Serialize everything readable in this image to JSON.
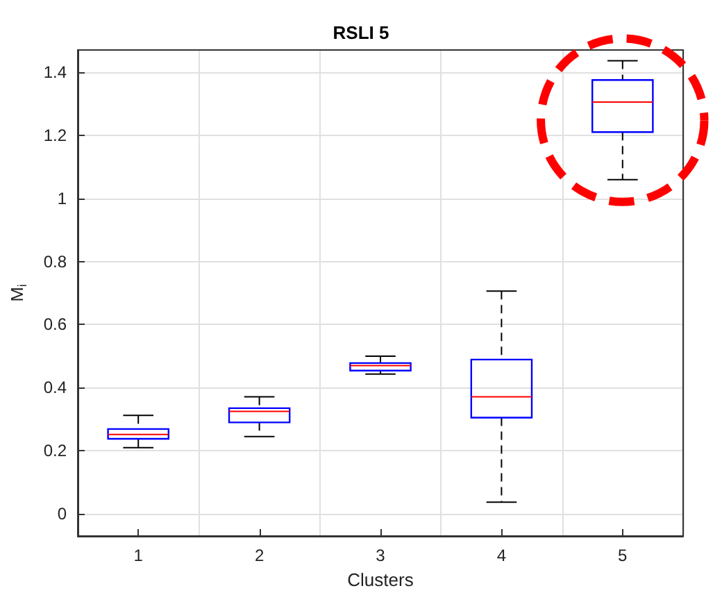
{
  "chart_data": {
    "type": "box",
    "title": "RSLI 5",
    "xlabel": "Clusters",
    "ylabel": "M$_{i}$",
    "categories": [
      "1",
      "2",
      "3",
      "4",
      "5"
    ],
    "color": "#0000ff",
    "boxes": [
      {
        "low": 0.21,
        "q1": 0.238,
        "median": 0.252,
        "q3": 0.269,
        "high": 0.312
      },
      {
        "low": 0.245,
        "q1": 0.29,
        "median": 0.325,
        "q3": 0.335,
        "high": 0.371
      },
      {
        "low": 0.443,
        "q1": 0.454,
        "median": 0.47,
        "q3": 0.478,
        "high": 0.5
      },
      {
        "low": 0.037,
        "q1": 0.305,
        "median": 0.371,
        "q3": 0.489,
        "high": 0.706
      },
      {
        "low": 1.059,
        "q1": 1.21,
        "median": 1.305,
        "q3": 1.375,
        "high": 1.436
      }
    ],
    "ylim": [
      -0.07,
      1.47
    ],
    "yticks": [
      0,
      0.2,
      0.4,
      0.6,
      0.8,
      1,
      1.2,
      1.4
    ],
    "grid": true,
    "line_style": "dashed"
  }
}
